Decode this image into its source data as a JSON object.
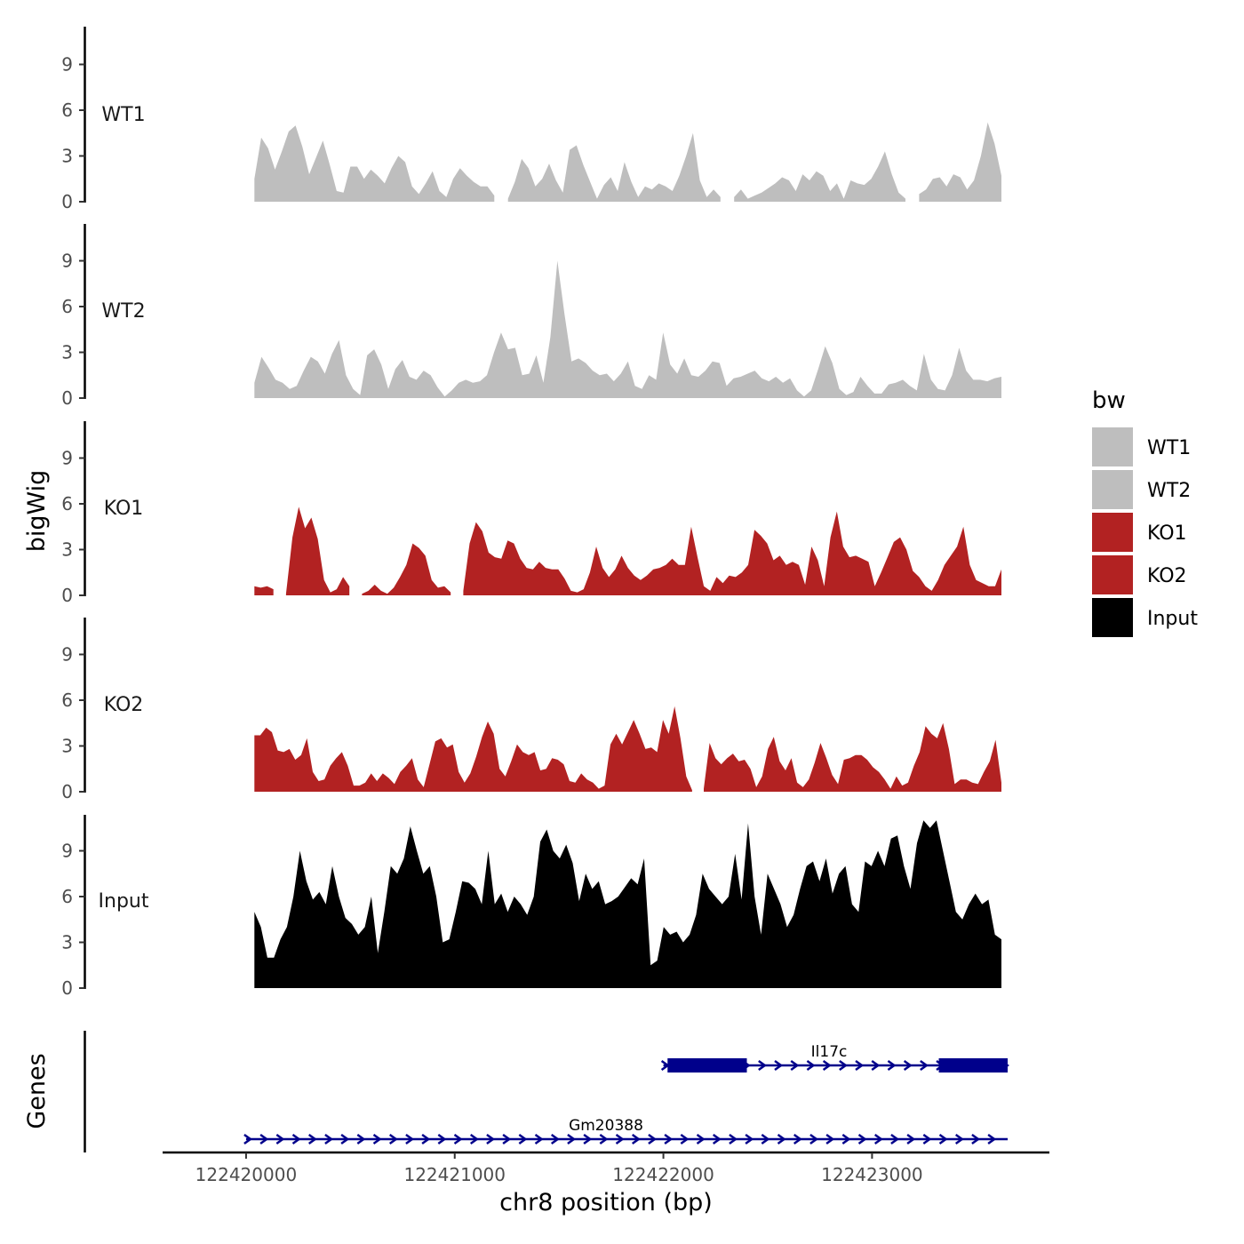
{
  "chart_data": {
    "type": "area",
    "ylabel": "bigWig",
    "xlabel": "chr8 position (bp)",
    "xlim": [
      122419600,
      122423850
    ],
    "x_ticks": [
      "122420000",
      "122421000",
      "122422000",
      "122423000"
    ],
    "x_tick_values": [
      122420000,
      122421000,
      122422000,
      122423000
    ],
    "ylim": [
      0,
      11.5
    ],
    "y_ticks": [
      "0",
      "3",
      "6",
      "9"
    ],
    "y_tick_values": [
      0,
      3,
      6,
      9
    ],
    "region": [
      122420040,
      122423620
    ],
    "legend": {
      "title": "bw",
      "entries": [
        {
          "label": "WT1",
          "color": "#bebebe"
        },
        {
          "label": "WT2",
          "color": "#bebebe"
        },
        {
          "label": "KO1",
          "color": "#b22222"
        },
        {
          "label": "KO2",
          "color": "#b22222"
        },
        {
          "label": "Input",
          "color": "#000000"
        }
      ]
    },
    "series": [
      {
        "name": "WT1",
        "color": "#bebebe",
        "values": [
          1.5,
          4.2,
          3.5,
          2.1,
          3.3,
          4.6,
          5.0,
          3.6,
          1.8,
          2.9,
          4.0,
          2.4,
          0.7,
          0.6,
          2.3,
          2.3,
          1.5,
          2.1,
          1.7,
          1.2,
          2.2,
          3.0,
          2.6,
          1.0,
          0.5,
          1.2,
          2.0,
          0.7,
          0.3,
          1.5,
          2.2,
          1.7,
          1.3,
          1.0,
          1.0,
          0.4,
          null,
          0.2,
          1.3,
          2.8,
          2.2,
          1.0,
          1.5,
          2.5,
          1.4,
          0.6,
          3.4,
          3.7,
          2.4,
          1.3,
          0.2,
          1.1,
          1.6,
          0.7,
          2.6,
          1.3,
          0.3,
          1.0,
          0.8,
          1.2,
          1.0,
          0.7,
          1.7,
          3.0,
          4.5,
          1.4,
          0.3,
          0.8,
          0.3,
          null,
          0.3,
          0.8,
          0.2,
          0.4,
          0.6,
          0.9,
          1.2,
          1.6,
          1.4,
          0.7,
          1.8,
          1.4,
          2.0,
          1.7,
          0.7,
          1.2,
          0.2,
          1.4,
          1.2,
          1.1,
          1.5,
          2.3,
          3.3,
          1.8,
          0.6,
          0.2,
          null,
          0.5,
          0.8,
          1.5,
          1.6,
          1.0,
          1.8,
          1.6,
          0.8,
          1.4,
          3.0,
          5.2,
          3.8,
          1.7
        ]
      },
      {
        "name": "WT2",
        "color": "#bebebe",
        "values": [
          1.0,
          2.7,
          2.0,
          1.2,
          1.0,
          0.6,
          0.8,
          1.8,
          2.7,
          2.4,
          1.6,
          2.9,
          3.8,
          1.5,
          0.6,
          0.2,
          2.8,
          3.2,
          2.2,
          0.6,
          1.9,
          2.5,
          1.4,
          1.2,
          1.8,
          1.5,
          0.7,
          0.1,
          0.5,
          1.0,
          1.2,
          1.0,
          1.1,
          1.5,
          3.0,
          4.3,
          3.2,
          3.3,
          1.5,
          1.6,
          2.8,
          1.0,
          4.0,
          9.0,
          5.5,
          2.4,
          2.6,
          2.3,
          1.8,
          1.5,
          1.6,
          1.1,
          1.6,
          2.4,
          0.8,
          0.6,
          1.5,
          1.2,
          4.3,
          2.2,
          1.6,
          2.6,
          1.5,
          1.4,
          1.8,
          2.4,
          2.3,
          0.8,
          1.3,
          1.4,
          1.6,
          1.8,
          1.3,
          1.1,
          1.4,
          1.0,
          1.3,
          0.5,
          0.1,
          0.5,
          1.9,
          3.4,
          2.3,
          0.6,
          0.2,
          0.4,
          1.4,
          0.8,
          0.3,
          0.3,
          0.9,
          1.0,
          1.2,
          0.8,
          0.5,
          2.9,
          1.2,
          0.6,
          0.5,
          1.5,
          3.3,
          1.8,
          1.2,
          1.2,
          1.1,
          1.3,
          1.4
        ]
      },
      {
        "name": "KO1",
        "color": "#b22222",
        "values": [
          0.6,
          0.5,
          0.6,
          0.4,
          null,
          0.1,
          3.8,
          5.8,
          4.4,
          5.1,
          3.7,
          1.0,
          0.2,
          0.4,
          1.2,
          0.6,
          null,
          0.1,
          0.3,
          0.7,
          0.3,
          0.1,
          0.5,
          1.2,
          2.0,
          3.4,
          3.1,
          2.6,
          1.0,
          0.5,
          0.6,
          0.2,
          null,
          0.3,
          3.4,
          4.8,
          4.2,
          2.8,
          2.5,
          2.4,
          3.6,
          3.4,
          2.4,
          1.8,
          1.7,
          2.2,
          1.8,
          1.7,
          1.7,
          1.1,
          0.3,
          0.2,
          0.4,
          1.5,
          3.2,
          1.8,
          1.2,
          1.7,
          2.6,
          1.8,
          1.3,
          1.0,
          1.3,
          1.7,
          1.8,
          2.0,
          2.4,
          2.0,
          2.0,
          4.5,
          2.5,
          0.6,
          0.3,
          1.2,
          0.8,
          1.3,
          1.2,
          1.5,
          2.0,
          4.3,
          3.9,
          3.4,
          2.3,
          2.6,
          2.0,
          2.2,
          2.0,
          0.7,
          3.2,
          2.3,
          0.6,
          3.8,
          5.5,
          3.2,
          2.5,
          2.6,
          2.4,
          2.2,
          0.6,
          1.5,
          2.5,
          3.5,
          3.8,
          3.0,
          1.6,
          1.2,
          0.6,
          0.3,
          1.0,
          2.0,
          2.6,
          3.2,
          4.5,
          2.0,
          1.0,
          0.8,
          0.6,
          0.6,
          1.7
        ]
      },
      {
        "name": "KO2",
        "color": "#b22222",
        "values": [
          3.7,
          3.7,
          4.2,
          3.9,
          2.7,
          2.6,
          2.8,
          2.1,
          2.4,
          3.5,
          1.3,
          0.7,
          0.8,
          1.7,
          2.2,
          2.6,
          1.7,
          0.4,
          0.4,
          0.6,
          1.2,
          0.7,
          1.2,
          0.9,
          0.5,
          1.3,
          1.7,
          2.2,
          0.8,
          0.3,
          1.8,
          3.3,
          3.5,
          2.9,
          3.1,
          1.3,
          0.6,
          1.2,
          2.3,
          3.6,
          4.6,
          3.8,
          1.5,
          1.0,
          2.0,
          3.1,
          2.6,
          2.4,
          2.6,
          1.4,
          1.5,
          2.2,
          2.1,
          1.8,
          0.7,
          0.6,
          1.2,
          0.8,
          0.6,
          0.2,
          0.4,
          3.1,
          3.8,
          3.1,
          3.9,
          4.7,
          3.8,
          2.8,
          2.9,
          2.6,
          4.7,
          3.8,
          5.6,
          3.5,
          1.0,
          0.1,
          null,
          0.2,
          3.2,
          2.2,
          1.8,
          2.2,
          2.5,
          2.0,
          2.1,
          1.5,
          0.3,
          1.0,
          2.8,
          3.6,
          2.0,
          1.4,
          2.2,
          0.6,
          0.3,
          0.8,
          1.9,
          3.2,
          2.2,
          1.1,
          0.5,
          2.1,
          2.2,
          2.4,
          2.4,
          2.1,
          1.6,
          1.3,
          0.8,
          0.2,
          1.0,
          0.4,
          0.6,
          1.7,
          2.6,
          4.3,
          3.8,
          3.5,
          4.5,
          2.8,
          0.5,
          0.8,
          0.8,
          0.6,
          0.5,
          1.3,
          2.0,
          3.4,
          0.6
        ]
      },
      {
        "name": "Input",
        "color": "#000000",
        "values": [
          5.0,
          4.0,
          2.0,
          2.0,
          3.2,
          4.0,
          6.0,
          9.0,
          7.0,
          5.8,
          6.3,
          5.5,
          8.0,
          6.0,
          4.6,
          4.2,
          3.5,
          4.0,
          6.0,
          2.3,
          5.0,
          8.0,
          7.5,
          8.5,
          10.6,
          9.0,
          7.5,
          8.0,
          6.0,
          3.0,
          3.2,
          5.0,
          7.0,
          6.9,
          6.5,
          5.5,
          9.0,
          5.5,
          6.2,
          5.0,
          6.0,
          5.5,
          4.8,
          6.0,
          9.6,
          10.4,
          9.0,
          8.5,
          9.4,
          8.2,
          5.7,
          7.5,
          6.5,
          7.0,
          5.5,
          5.7,
          6.0,
          6.6,
          7.2,
          6.8,
          8.5,
          1.5,
          1.8,
          4.0,
          3.5,
          3.7,
          3.0,
          3.5,
          4.8,
          7.5,
          6.5,
          6.0,
          5.5,
          6.0,
          8.8,
          5.8,
          10.8,
          6.0,
          3.5,
          7.5,
          6.5,
          5.5,
          4.0,
          4.8,
          6.5,
          8.0,
          8.3,
          7.0,
          8.5,
          6.2,
          7.5,
          8.0,
          5.5,
          5.0,
          8.3,
          8.0,
          9.0,
          8.0,
          9.8,
          10.0,
          8.0,
          6.5,
          9.5,
          11.0,
          10.5,
          11.0,
          9.0,
          7.0,
          5.0,
          4.5,
          5.5,
          6.2,
          5.5,
          5.8,
          3.5,
          3.2
        ]
      }
    ],
    "genes": [
      {
        "name": "Il17c",
        "start": 122422000,
        "end": 122423650,
        "strand": "+",
        "exons": [
          [
            122422020,
            122422400
          ],
          [
            122423320,
            122423650
          ]
        ]
      },
      {
        "name": "Gm20388",
        "start": 122420000,
        "end": 122423650,
        "strand": "+",
        "exons": []
      }
    ],
    "genes_ylabel": "Genes"
  }
}
